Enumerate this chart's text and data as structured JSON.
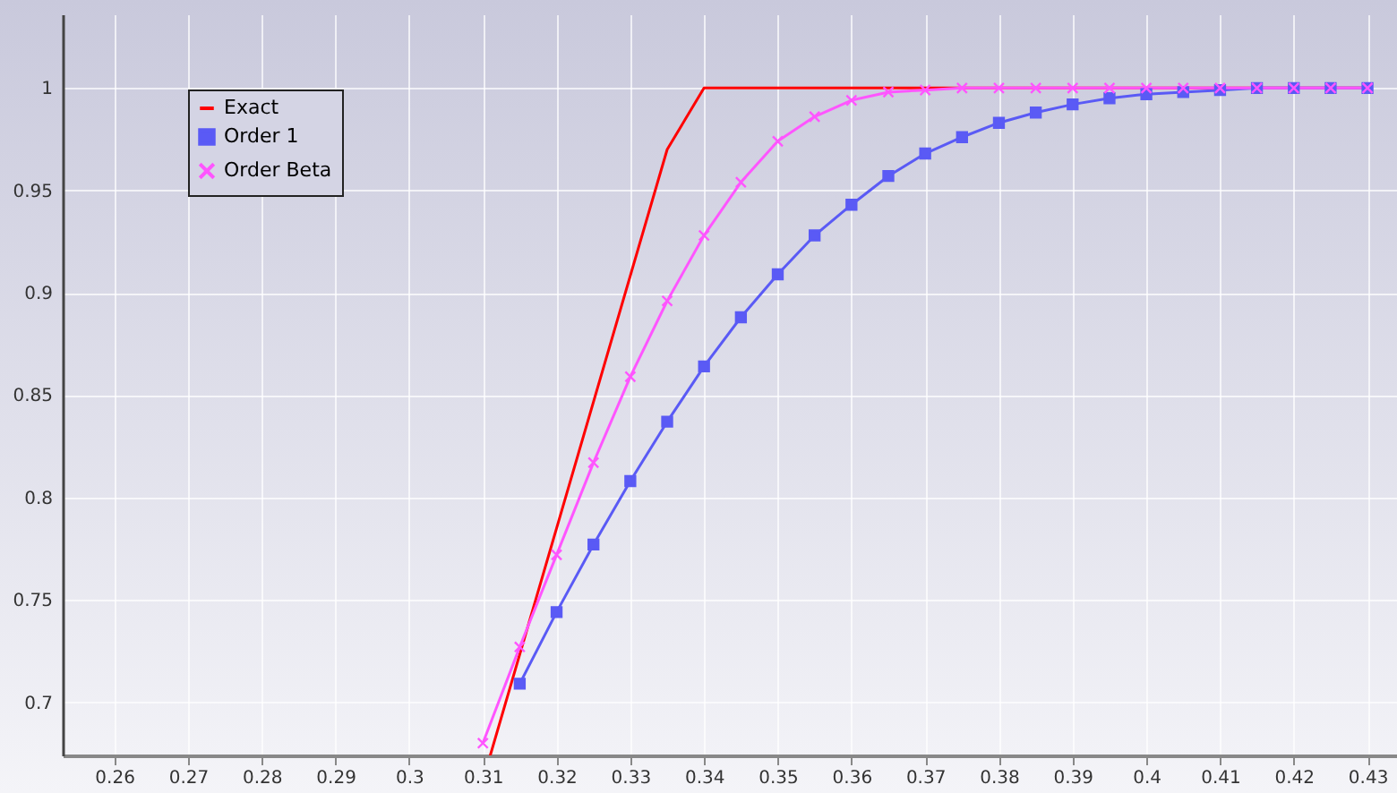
{
  "chart_data": {
    "type": "line",
    "x": [
      0.315,
      0.32,
      0.325,
      0.33,
      0.335,
      0.34,
      0.345,
      0.35,
      0.355,
      0.36,
      0.365,
      0.37,
      0.375,
      0.38,
      0.385,
      0.39,
      0.395,
      0.4,
      0.405,
      0.41,
      0.415,
      0.42,
      0.425,
      0.43
    ],
    "series": [
      {
        "name": "Exact",
        "color": "#ff0000",
        "marker": "none",
        "x": [
          0.311,
          0.335,
          0.34,
          0.43
        ],
        "values": [
          0.674,
          0.97,
          1.0,
          1.0
        ]
      },
      {
        "name": "Order 1",
        "color": "#5a5af5",
        "marker": "square",
        "values": [
          0.709,
          0.744,
          0.777,
          0.808,
          0.837,
          0.864,
          0.888,
          0.909,
          0.928,
          0.943,
          0.957,
          0.968,
          0.976,
          0.983,
          0.988,
          0.992,
          0.995,
          0.997,
          0.998,
          0.999,
          1.0,
          1.0,
          1.0,
          1.0
        ]
      },
      {
        "name": "Order Beta",
        "color": "#ff55ff",
        "marker": "cross",
        "x": [
          0.31,
          0.315,
          0.32,
          0.325,
          0.33,
          0.335,
          0.34,
          0.345,
          0.35,
          0.355,
          0.36,
          0.365,
          0.37,
          0.375,
          0.38,
          0.385,
          0.39,
          0.395,
          0.4,
          0.405,
          0.41,
          0.415,
          0.42,
          0.425,
          0.43
        ],
        "values": [
          0.68,
          0.727,
          0.772,
          0.817,
          0.859,
          0.896,
          0.928,
          0.954,
          0.974,
          0.986,
          0.994,
          0.998,
          0.999,
          1.0,
          1.0,
          1.0,
          1.0,
          1.0,
          1.0,
          1.0,
          1.0,
          1.0,
          1.0,
          1.0,
          1.0
        ]
      }
    ],
    "xlim": [
      0.253,
      0.434
    ],
    "ylim": [
      0.674,
      1.036
    ],
    "xticks": [
      0.26,
      0.27,
      0.28,
      0.29,
      0.3,
      0.31,
      0.32,
      0.33,
      0.34,
      0.35,
      0.36,
      0.37,
      0.38,
      0.39,
      0.4,
      0.41,
      0.42,
      0.43
    ],
    "yticks": [
      0.7,
      0.75,
      0.8,
      0.85,
      0.9,
      0.95,
      1
    ],
    "grid": true,
    "legend": "top left",
    "line_style": "solid"
  }
}
